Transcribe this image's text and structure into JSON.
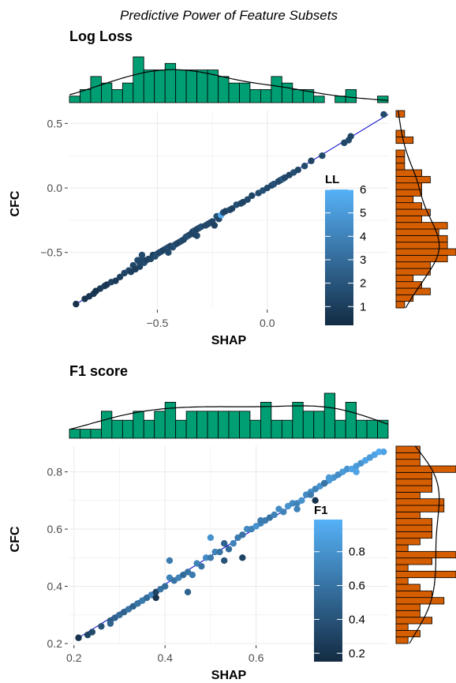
{
  "figure": {
    "title": "Predictive Power of Feature Subsets"
  },
  "colors": {
    "top_hist": "#009E73",
    "side_hist": "#D55E00",
    "fit_line": "#0000CD",
    "grid": "#EBEBEB",
    "gradient_low": "#132B43",
    "gradient_high": "#56B1F7"
  },
  "chart_data": [
    {
      "type": "scatter",
      "title": "Log Loss",
      "xlabel": "SHAP",
      "ylabel": "CFC",
      "xlim": [
        -0.9,
        0.55
      ],
      "ylim": [
        -0.93,
        0.6
      ],
      "xticks": [
        -0.5,
        0.0
      ],
      "xtick_labels": [
        "−0.5",
        "0.0"
      ],
      "yticks": [
        -0.5,
        0.0,
        0.5
      ],
      "ytick_labels": [
        "−0.5",
        "0.0",
        "0.5"
      ],
      "grid": true,
      "fit_line": {
        "x": [
          -0.87,
          0.55
        ],
        "y": [
          -0.9,
          0.57
        ]
      },
      "color_legend": {
        "title": "LL",
        "range": [
          0.2,
          6
        ],
        "ticks": [
          1,
          2,
          3,
          4,
          5,
          6
        ],
        "tick_labels": [
          "1",
          "2",
          "3",
          "4",
          "5",
          "6"
        ]
      },
      "points": [
        [
          -0.87,
          -0.9,
          0.5
        ],
        [
          -0.83,
          -0.86,
          0.6
        ],
        [
          -0.81,
          -0.84,
          0.7
        ],
        [
          -0.79,
          -0.82,
          0.8
        ],
        [
          -0.78,
          -0.8,
          0.6
        ],
        [
          -0.76,
          -0.78,
          0.9
        ],
        [
          -0.74,
          -0.76,
          1.0
        ],
        [
          -0.73,
          -0.75,
          0.7
        ],
        [
          -0.71,
          -0.73,
          1.2
        ],
        [
          -0.69,
          -0.72,
          0.9
        ],
        [
          -0.67,
          -0.69,
          1.1
        ],
        [
          -0.65,
          -0.66,
          1.3
        ],
        [
          -0.63,
          -0.64,
          1.5
        ],
        [
          -0.62,
          -0.65,
          1.1
        ],
        [
          -0.61,
          -0.6,
          1.4
        ],
        [
          -0.6,
          -0.63,
          1.0
        ],
        [
          -0.59,
          -0.56,
          1.6
        ],
        [
          -0.58,
          -0.61,
          1.2
        ],
        [
          -0.57,
          -0.55,
          1.5
        ],
        [
          -0.56,
          -0.58,
          1.7
        ],
        [
          -0.55,
          -0.56,
          1.3
        ],
        [
          -0.54,
          -0.55,
          1.2
        ],
        [
          -0.53,
          -0.55,
          1.4
        ],
        [
          -0.52,
          -0.52,
          1.1
        ],
        [
          -0.51,
          -0.53,
          1.6
        ],
        [
          -0.5,
          -0.51,
          1.8
        ],
        [
          -0.49,
          -0.5,
          1.3
        ],
        [
          -0.48,
          -0.49,
          1.5
        ],
        [
          -0.47,
          -0.48,
          1.2
        ],
        [
          -0.46,
          -0.47,
          1.4
        ],
        [
          -0.45,
          -0.46,
          1.7
        ],
        [
          -0.44,
          -0.45,
          1.3
        ],
        [
          -0.43,
          -0.46,
          1.5
        ],
        [
          -0.42,
          -0.44,
          1.9
        ],
        [
          -0.41,
          -0.43,
          1.4
        ],
        [
          -0.4,
          -0.42,
          1.2
        ],
        [
          -0.39,
          -0.41,
          1.6
        ],
        [
          -0.38,
          -0.4,
          1.3
        ],
        [
          -0.37,
          -0.38,
          1.5
        ],
        [
          -0.36,
          -0.37,
          1.8
        ],
        [
          -0.35,
          -0.36,
          1.4
        ],
        [
          -0.34,
          -0.34,
          1.2
        ],
        [
          -0.33,
          -0.33,
          1.6
        ],
        [
          -0.32,
          -0.32,
          1.3
        ],
        [
          -0.31,
          -0.31,
          1.5
        ],
        [
          -0.3,
          -0.3,
          1.7
        ],
        [
          -0.28,
          -0.29,
          1.4
        ],
        [
          -0.26,
          -0.27,
          1.6
        ],
        [
          -0.25,
          -0.26,
          1.3
        ],
        [
          -0.23,
          -0.22,
          1.8
        ],
        [
          -0.22,
          -0.24,
          1.4
        ],
        [
          -0.21,
          -0.21,
          5.8
        ],
        [
          -0.2,
          -0.19,
          1.6
        ],
        [
          -0.19,
          -0.18,
          1.3
        ],
        [
          -0.17,
          -0.17,
          1.5
        ],
        [
          -0.16,
          -0.16,
          1.2
        ],
        [
          -0.14,
          -0.13,
          1.7
        ],
        [
          -0.12,
          -0.12,
          1.4
        ],
        [
          -0.11,
          -0.11,
          1.3
        ],
        [
          -0.09,
          -0.09,
          1.5
        ],
        [
          -0.07,
          -0.06,
          1.3
        ],
        [
          -0.04,
          -0.04,
          1.6
        ],
        [
          -0.02,
          -0.02,
          1.8
        ],
        [
          0.0,
          0.0,
          1.5
        ],
        [
          0.02,
          0.02,
          1.3
        ],
        [
          0.03,
          0.03,
          1.9
        ],
        [
          0.05,
          0.05,
          1.6
        ],
        [
          0.06,
          0.06,
          1.4
        ],
        [
          0.07,
          0.07,
          2.2
        ],
        [
          0.08,
          0.08,
          1.5
        ],
        [
          0.1,
          0.1,
          1.3
        ],
        [
          0.12,
          0.12,
          1.7
        ],
        [
          0.14,
          0.14,
          1.4
        ],
        [
          0.17,
          0.17,
          1.6
        ],
        [
          0.2,
          0.21,
          1.3
        ],
        [
          0.25,
          0.25,
          1.5
        ],
        [
          0.35,
          0.35,
          1.4
        ],
        [
          0.37,
          0.37,
          1.6
        ],
        [
          0.38,
          0.4,
          1.3
        ],
        [
          0.53,
          0.57,
          1.5
        ],
        [
          -0.78,
          -0.8,
          0.5
        ],
        [
          -0.58,
          -0.58,
          1.4
        ],
        [
          -0.57,
          -0.52,
          1.6
        ],
        [
          -0.45,
          -0.5,
          1.5
        ],
        [
          -0.33,
          -0.36,
          1.3
        ],
        [
          -0.27,
          -0.28,
          1.5
        ],
        [
          -0.24,
          -0.29,
          1.2
        ],
        [
          -0.32,
          -0.37,
          1.4
        ]
      ]
    },
    {
      "type": "scatter",
      "title": "F1 score",
      "xlabel": "SHAP",
      "ylabel": "CFC",
      "xlim": [
        0.19,
        0.89
      ],
      "ylim": [
        0.2,
        0.89
      ],
      "xticks": [
        0.2,
        0.4,
        0.6
      ],
      "xtick_labels": [
        "0.2",
        "0.4",
        "0.6"
      ],
      "yticks": [
        0.2,
        0.4,
        0.6,
        0.8
      ],
      "ytick_labels": [
        "0.2",
        "0.4",
        "0.6",
        "0.8"
      ],
      "grid": true,
      "fit_line": {
        "x": [
          0.21,
          0.88
        ],
        "y": [
          0.22,
          0.88
        ]
      },
      "color_legend": {
        "title": "F1",
        "range": [
          0.15,
          0.99
        ],
        "ticks": [
          0.2,
          0.4,
          0.6,
          0.8
        ],
        "tick_labels": [
          "0.2",
          "0.4",
          "0.6",
          "0.8"
        ]
      },
      "points": [
        [
          0.21,
          0.22,
          0.2
        ],
        [
          0.23,
          0.23,
          0.3
        ],
        [
          0.24,
          0.24,
          0.35
        ],
        [
          0.26,
          0.26,
          0.4
        ],
        [
          0.28,
          0.28,
          0.45
        ],
        [
          0.29,
          0.29,
          0.5
        ],
        [
          0.3,
          0.3,
          0.55
        ],
        [
          0.31,
          0.31,
          0.5
        ],
        [
          0.32,
          0.32,
          0.6
        ],
        [
          0.33,
          0.33,
          0.5
        ],
        [
          0.35,
          0.35,
          0.65
        ],
        [
          0.36,
          0.36,
          0.55
        ],
        [
          0.37,
          0.37,
          0.7
        ],
        [
          0.38,
          0.38,
          0.3
        ],
        [
          0.38,
          0.36,
          0.2
        ],
        [
          0.39,
          0.39,
          0.6
        ],
        [
          0.4,
          0.4,
          0.55
        ],
        [
          0.41,
          0.43,
          0.7
        ],
        [
          0.41,
          0.49,
          0.65
        ],
        [
          0.42,
          0.42,
          0.6
        ],
        [
          0.43,
          0.43,
          0.7
        ],
        [
          0.44,
          0.44,
          0.55
        ],
        [
          0.45,
          0.45,
          0.6
        ],
        [
          0.46,
          0.44,
          0.65
        ],
        [
          0.47,
          0.48,
          0.7
        ],
        [
          0.48,
          0.47,
          0.6
        ],
        [
          0.49,
          0.5,
          0.75
        ],
        [
          0.5,
          0.57,
          0.8
        ],
        [
          0.5,
          0.5,
          0.65
        ],
        [
          0.51,
          0.52,
          0.7
        ],
        [
          0.52,
          0.52,
          0.6
        ],
        [
          0.53,
          0.55,
          0.5
        ],
        [
          0.54,
          0.53,
          0.55
        ],
        [
          0.55,
          0.55,
          0.7
        ],
        [
          0.56,
          0.57,
          0.65
        ],
        [
          0.57,
          0.58,
          0.6
        ],
        [
          0.57,
          0.5,
          0.3
        ],
        [
          0.58,
          0.6,
          0.75
        ],
        [
          0.59,
          0.6,
          0.7
        ],
        [
          0.6,
          0.61,
          0.8
        ],
        [
          0.61,
          0.62,
          0.7
        ],
        [
          0.62,
          0.63,
          0.65
        ],
        [
          0.63,
          0.64,
          0.6
        ],
        [
          0.64,
          0.65,
          0.7
        ],
        [
          0.65,
          0.67,
          0.75
        ],
        [
          0.66,
          0.66,
          0.7
        ],
        [
          0.67,
          0.68,
          0.8
        ],
        [
          0.68,
          0.69,
          0.75
        ],
        [
          0.69,
          0.69,
          0.7
        ],
        [
          0.7,
          0.7,
          0.8
        ],
        [
          0.71,
          0.72,
          0.75
        ],
        [
          0.72,
          0.73,
          0.8
        ],
        [
          0.73,
          0.74,
          0.7
        ],
        [
          0.73,
          0.7,
          0.2
        ],
        [
          0.74,
          0.75,
          0.8
        ],
        [
          0.75,
          0.76,
          0.75
        ],
        [
          0.76,
          0.77,
          0.85
        ],
        [
          0.77,
          0.78,
          0.8
        ],
        [
          0.78,
          0.79,
          0.75
        ],
        [
          0.79,
          0.8,
          0.85
        ],
        [
          0.8,
          0.81,
          0.8
        ],
        [
          0.81,
          0.81,
          0.9
        ],
        [
          0.82,
          0.82,
          0.85
        ],
        [
          0.83,
          0.83,
          0.8
        ],
        [
          0.84,
          0.84,
          0.9
        ],
        [
          0.85,
          0.85,
          0.85
        ],
        [
          0.86,
          0.86,
          0.9
        ],
        [
          0.87,
          0.87,
          0.95
        ],
        [
          0.88,
          0.87,
          0.9
        ],
        [
          0.28,
          0.27,
          0.5
        ],
        [
          0.34,
          0.34,
          0.6
        ],
        [
          0.45,
          0.38,
          0.5
        ],
        [
          0.53,
          0.49,
          0.4
        ],
        [
          0.61,
          0.63,
          0.65
        ],
        [
          0.69,
          0.67,
          0.7
        ],
        [
          0.76,
          0.78,
          0.85
        ],
        [
          0.82,
          0.8,
          0.9
        ],
        [
          0.75,
          0.76,
          0.6
        ],
        [
          0.72,
          0.72,
          0.65
        ]
      ]
    }
  ]
}
